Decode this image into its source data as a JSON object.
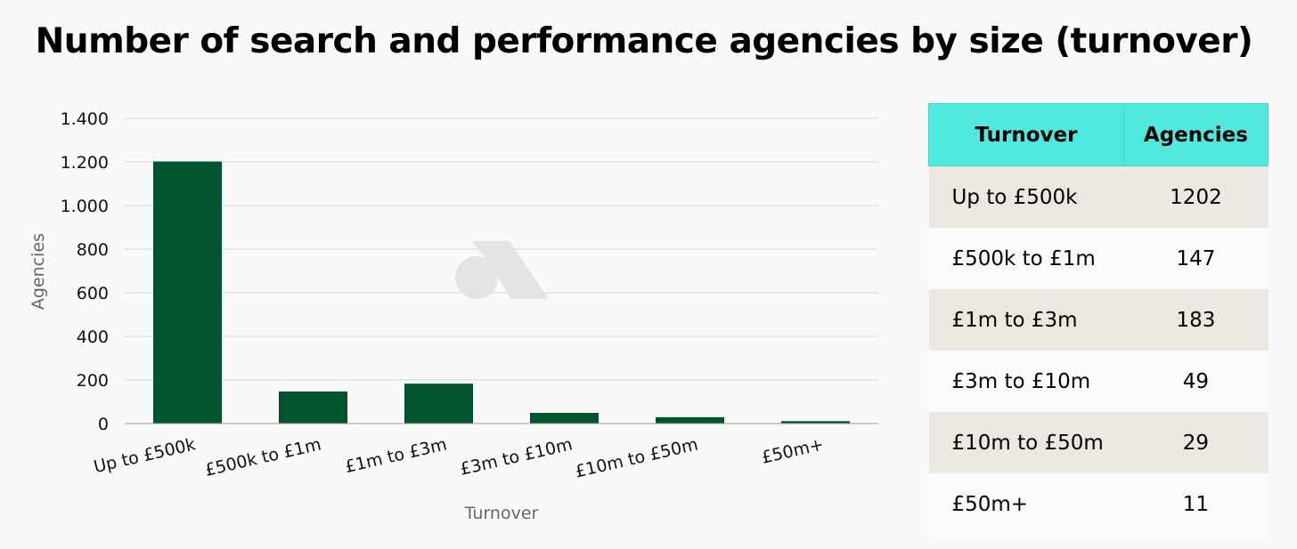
{
  "chart_data": {
    "type": "bar",
    "title": "Number of search and performance agencies by size (turnover)",
    "xlabel": "Turnover",
    "ylabel": "Agencies",
    "categories": [
      "Up to £500k",
      "£500k to £1m",
      "£1m to £3m",
      "£3m to £10m",
      "£10m to £50m",
      "£50m+"
    ],
    "values": [
      1202,
      147,
      183,
      49,
      29,
      11
    ],
    "ylim": [
      0,
      1400
    ],
    "yticks": [
      0,
      200,
      400,
      600,
      800,
      1000,
      1200,
      1400
    ],
    "ytick_labels": [
      "0",
      "200",
      "400",
      "600",
      "800",
      "1.000",
      "1.200",
      "1.400"
    ],
    "grid": true,
    "bar_color": "#02542f"
  },
  "table": {
    "header_turnover": "Turnover",
    "header_agencies": "Agencies",
    "header_color": "#51e8dd",
    "rows": [
      {
        "turnover": "Up to £500k",
        "agencies": "1202"
      },
      {
        "turnover": "£500k to £1m",
        "agencies": "147"
      },
      {
        "turnover": "£1m to £3m",
        "agencies": "183"
      },
      {
        "turnover": "£3m to £10m",
        "agencies": "49"
      },
      {
        "turnover": "£10m to £50m",
        "agencies": "29"
      },
      {
        "turnover": "£50m+",
        "agencies": "11"
      }
    ]
  }
}
